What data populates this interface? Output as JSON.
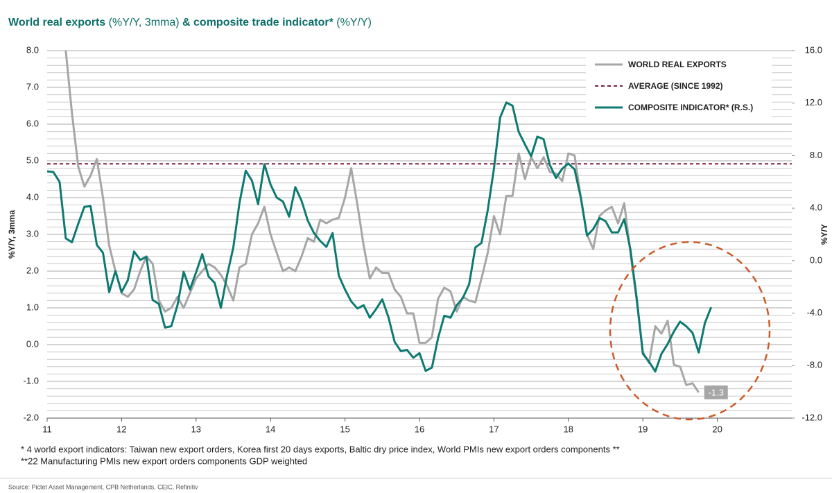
{
  "chart_data": {
    "type": "line",
    "title": [
      {
        "text": "World real exports",
        "bold": true
      },
      {
        "text": " (%Y/Y, 3mma) ",
        "bold": false
      },
      {
        "text": "& composite trade indicator*",
        "bold": true
      },
      {
        "text": " (%Y/Y)",
        "bold": false
      }
    ],
    "title_color": "#0b6e69",
    "ylabel": "%Y/Y, 3mma",
    "y2label": "%Y/Y",
    "x": [
      11,
      11.083,
      11.167,
      11.25,
      11.333,
      11.417,
      11.5,
      11.583,
      11.667,
      11.75,
      11.833,
      11.917,
      12,
      12.083,
      12.167,
      12.25,
      12.333,
      12.417,
      12.5,
      12.583,
      12.667,
      12.75,
      12.833,
      12.917,
      13,
      13.083,
      13.167,
      13.25,
      13.333,
      13.417,
      13.5,
      13.583,
      13.667,
      13.75,
      13.833,
      13.917,
      14,
      14.083,
      14.167,
      14.25,
      14.333,
      14.417,
      14.5,
      14.583,
      14.667,
      14.75,
      14.833,
      14.917,
      15,
      15.083,
      15.167,
      15.25,
      15.333,
      15.417,
      15.5,
      15.583,
      15.667,
      15.75,
      15.833,
      15.917,
      16,
      16.083,
      16.167,
      16.25,
      16.333,
      16.417,
      16.5,
      16.583,
      16.667,
      16.75,
      16.833,
      16.917,
      17,
      17.083,
      17.167,
      17.25,
      17.333,
      17.417,
      17.5,
      17.583,
      17.667,
      17.75,
      17.833,
      17.917,
      18,
      18.083,
      18.167,
      18.25,
      18.333,
      18.417,
      18.5,
      18.583,
      18.667,
      18.75,
      18.833,
      18.917,
      19,
      19.083,
      19.167,
      19.25,
      19.333,
      19.417,
      19.5,
      19.583,
      19.667,
      19.75,
      19.833,
      19.917
    ],
    "xlim": [
      11,
      21
    ],
    "xticks": [
      11,
      12,
      13,
      14,
      15,
      16,
      17,
      18,
      19,
      20
    ],
    "ylim": [
      -2,
      8
    ],
    "yticks": [
      {
        "value": -2,
        "label": "-2.0"
      },
      {
        "value": -1,
        "label": "-1.0"
      },
      {
        "value": 0,
        "label": "0.0"
      },
      {
        "value": 1,
        "label": "1.0"
      },
      {
        "value": 2,
        "label": "2.0"
      },
      {
        "value": 3,
        "label": "3.0"
      },
      {
        "value": 4,
        "label": "4.0"
      },
      {
        "value": 5,
        "label": "5.0"
      },
      {
        "value": 6,
        "label": "6.0"
      },
      {
        "value": 7,
        "label": "7.0"
      },
      {
        "value": 8,
        "label": "8.0"
      }
    ],
    "y2lim": [
      -12,
      16
    ],
    "y2ticks": [
      {
        "value": -12,
        "label": "-12.0"
      },
      {
        "value": -8,
        "label": "-8.0"
      },
      {
        "value": -4,
        "label": "-4.0"
      },
      {
        "value": 0,
        "label": "0.0"
      },
      {
        "value": 4,
        "label": "4.0"
      },
      {
        "value": 8,
        "label": "8.0"
      },
      {
        "value": 12,
        "label": "12.0"
      },
      {
        "value": 16,
        "label": "16.0"
      }
    ],
    "grid": true,
    "grid_minor_step": 0.2,
    "legend": "upper right",
    "series": [
      {
        "name": "WORLD REAL EXPORTS",
        "color": "#a6a6a6",
        "label_last": true,
        "values": [
          null,
          null,
          null,
          8.0,
          6.3,
          4.85,
          4.3,
          4.6,
          5.05,
          4.0,
          2.7,
          2.0,
          1.4,
          1.3,
          1.5,
          2.0,
          2.4,
          2.2,
          1.2,
          0.9,
          1.0,
          1.3,
          1.0,
          1.4,
          1.8,
          2.0,
          2.2,
          2.1,
          1.9,
          1.6,
          1.2,
          2.1,
          2.2,
          3.0,
          3.3,
          3.75,
          3.0,
          2.5,
          2.0,
          2.1,
          2.0,
          2.4,
          2.9,
          2.8,
          3.4,
          3.3,
          3.4,
          3.45,
          4.0,
          4.8,
          3.8,
          2.7,
          1.8,
          2.1,
          1.95,
          1.95,
          1.5,
          1.3,
          0.85,
          0.85,
          0.05,
          0.05,
          0.2,
          1.25,
          1.55,
          1.45,
          0.9,
          1.3,
          1.2,
          1.15,
          1.8,
          2.5,
          3.5,
          3.0,
          4.05,
          4.05,
          5.2,
          4.5,
          5.1,
          4.8,
          5.1,
          4.7,
          4.65,
          4.45,
          5.2,
          5.15,
          4.0,
          3.0,
          2.6,
          3.5,
          3.65,
          3.75,
          3.3,
          3.85,
          2.5,
          1.2,
          -0.2,
          -0.5,
          0.5,
          0.3,
          0.65,
          -0.55,
          -0.6,
          -1.1,
          -1.05,
          -1.3,
          null,
          null
        ]
      },
      {
        "name": "COMPOSITE INDICATOR* (R.S.)",
        "color": "#0d7a72",
        "axis": "y2",
        "values": [
          6.8,
          6.75,
          6.0,
          1.7,
          1.4,
          2.8,
          4.1,
          4.15,
          1.2,
          0.6,
          -2.4,
          -0.8,
          -2.4,
          -1.5,
          0.7,
          0.05,
          0.3,
          -3.0,
          -3.3,
          -5.1,
          -5.0,
          -3.4,
          -0.85,
          -2.2,
          -0.9,
          0.5,
          -1.2,
          -1.7,
          -3.6,
          -1.1,
          1.0,
          4.4,
          6.85,
          6.1,
          4.3,
          7.35,
          5.8,
          4.8,
          4.5,
          3.35,
          5.6,
          4.55,
          3.05,
          2.1,
          1.5,
          1.05,
          2.1,
          -1.15,
          -2.2,
          -3.1,
          -3.65,
          -3.4,
          -4.35,
          -3.7,
          -2.95,
          -4.3,
          -6.2,
          -6.9,
          -6.8,
          -7.4,
          -7.05,
          -8.4,
          -8.15,
          -5.9,
          -4.2,
          -4.35,
          -3.4,
          -2.85,
          -1.8,
          1.0,
          1.35,
          3.85,
          7.0,
          10.9,
          12.05,
          11.8,
          9.8,
          8.85,
          7.95,
          9.45,
          9.25,
          7.3,
          6.3,
          7.0,
          7.4,
          6.95,
          4.8,
          1.9,
          2.4,
          3.25,
          3.0,
          2.15,
          2.15,
          3.15,
          0.85,
          -2.85,
          -7.1,
          -7.7,
          -8.45,
          -7.1,
          -6.35,
          -5.4,
          -4.65,
          -5.0,
          -5.5,
          -7.0,
          -4.75,
          -3.55
        ]
      }
    ],
    "hlines": [
      {
        "name": "AVERAGE (SINCE 1992)",
        "value": 4.92,
        "color": "#7b1f3c",
        "dashed": true
      }
    ],
    "footnotes": [
      "* 4 world export indicators: Taiwan new export orders, Korea first 20 days exports, Baltic dry price index, World PMIs new export orders components **",
      "**22 Manufacturing PMIs new export orders components GDP weighted"
    ],
    "source": "Source: Pictet Asset Management, CPB Netherlands, CEIC, Refinitiv"
  }
}
